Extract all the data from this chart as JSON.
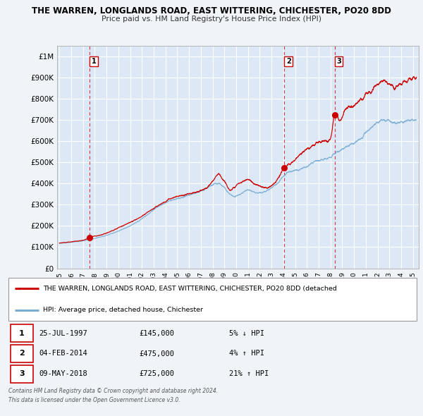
{
  "title": "THE WARREN, LONGLANDS ROAD, EAST WITTERING, CHICHESTER, PO20 8DD",
  "subtitle": "Price paid vs. HM Land Registry's House Price Index (HPI)",
  "bg_color": "#f0f4f8",
  "plot_bg_color": "#dce8f5",
  "grid_color": "#ffffff",
  "red_line_color": "#cc0000",
  "blue_line_color": "#7aadd4",
  "vline_color": "#cc0000",
  "ylim": [
    0,
    1050000
  ],
  "xlim_start": 1994.8,
  "xlim_end": 2025.5,
  "yticks": [
    0,
    100000,
    200000,
    300000,
    400000,
    500000,
    600000,
    700000,
    800000,
    900000,
    1000000
  ],
  "ytick_labels": [
    "£0",
    "£100K",
    "£200K",
    "£300K",
    "£400K",
    "£500K",
    "£600K",
    "£700K",
    "£800K",
    "£900K",
    "£1M"
  ],
  "xticks": [
    1995,
    1996,
    1997,
    1998,
    1999,
    2000,
    2001,
    2002,
    2003,
    2004,
    2005,
    2006,
    2007,
    2008,
    2009,
    2010,
    2011,
    2012,
    2013,
    2014,
    2015,
    2016,
    2017,
    2018,
    2019,
    2020,
    2021,
    2022,
    2023,
    2024,
    2025
  ],
  "transactions": [
    {
      "num": 1,
      "date": "25-JUL-1997",
      "year": 1997.56,
      "price": 145000,
      "pct": "5%",
      "dir": "↓"
    },
    {
      "num": 2,
      "date": "04-FEB-2014",
      "year": 2014.09,
      "price": 475000,
      "pct": "4%",
      "dir": "↑"
    },
    {
      "num": 3,
      "date": "09-MAY-2018",
      "year": 2018.36,
      "price": 725000,
      "pct": "21%",
      "dir": "↑"
    }
  ],
  "legend_line1": "THE WARREN, LONGLANDS ROAD, EAST WITTERING, CHICHESTER, PO20 8DD (detached",
  "legend_line2": "HPI: Average price, detached house, Chichester",
  "footer1": "Contains HM Land Registry data © Crown copyright and database right 2024.",
  "footer2": "This data is licensed under the Open Government Licence v3.0."
}
